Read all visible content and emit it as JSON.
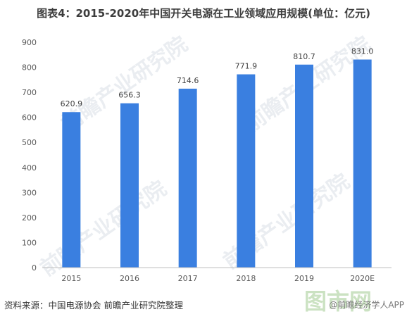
{
  "title": "图表4：2015-2020年中国开关电源在工业领域应用规模(单位：亿元)",
  "source": "资料来源：中国电源协会 前瞻产业研究院整理",
  "credit": "@前瞻经济学人APP",
  "watermarks": {
    "brand": "前瞻产业研究院",
    "site": "图市网"
  },
  "colors": {
    "bar": "#3a7fe0",
    "axis": "#bfbfbf",
    "tick_text": "#595959",
    "label_text": "#404040"
  },
  "chart_data": {
    "type": "bar",
    "title": "图表4：2015-2020年中国开关电源在工业领域应用规模(单位：亿元)",
    "categories": [
      "2015",
      "2016",
      "2017",
      "2018",
      "2019",
      "2020E"
    ],
    "values": [
      620.9,
      656.3,
      714.6,
      771.9,
      810.7,
      831.0
    ],
    "data_labels": [
      "620.9",
      "656.3",
      "714.6",
      "771.9",
      "810.7",
      "831.0"
    ],
    "ylim": [
      0,
      900
    ],
    "yticks": [
      0,
      100,
      200,
      300,
      400,
      500,
      600,
      700,
      800,
      900
    ],
    "grid": false,
    "legend": "none"
  }
}
